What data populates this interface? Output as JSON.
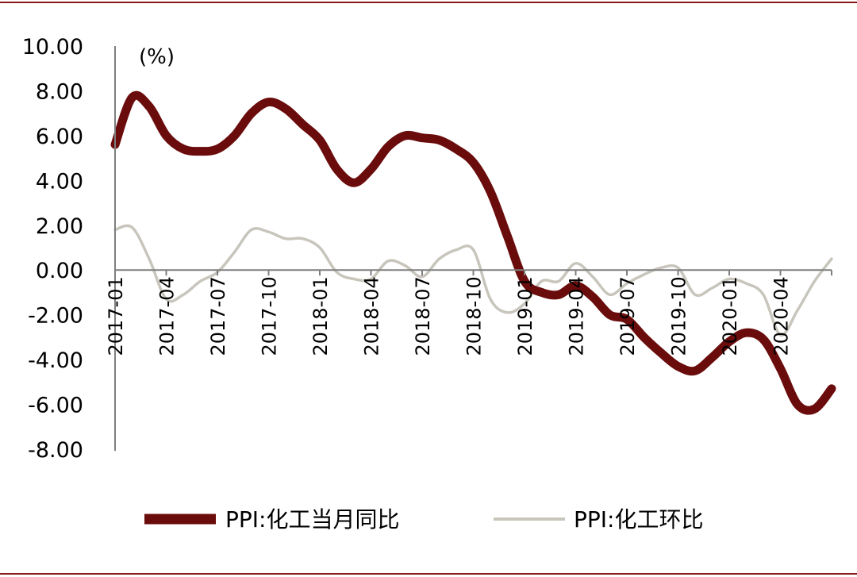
{
  "chart_data": {
    "type": "line",
    "unit_label": "(%)",
    "ylim": [
      -8,
      10
    ],
    "y_ticks": [
      "10.00",
      "8.00",
      "6.00",
      "4.00",
      "2.00",
      "0.00",
      "-2.00",
      "-4.00",
      "-6.00",
      "-8.00"
    ],
    "y_tick_values": [
      10,
      8,
      6,
      4,
      2,
      0,
      -2,
      -4,
      -6,
      -8
    ],
    "x_tick_labels": [
      "2017-01",
      "2017-04",
      "2017-07",
      "2017-10",
      "2018-01",
      "2018-04",
      "2018-07",
      "2018-10",
      "2019-01",
      "2019-04",
      "2019-07",
      "2019-10",
      "2020-01",
      "2020-04"
    ],
    "x_tick_month_index": [
      0,
      3,
      6,
      9,
      12,
      15,
      18,
      21,
      24,
      27,
      30,
      33,
      36,
      39
    ],
    "n_months": 43,
    "series": [
      {
        "name": "PPI:化工当月同比",
        "color": "#6b0c0c",
        "values": [
          5.6,
          7.7,
          7.3,
          6.0,
          5.4,
          5.3,
          5.4,
          6.0,
          7.0,
          7.5,
          7.2,
          6.5,
          5.8,
          4.5,
          3.9,
          4.5,
          5.5,
          6.0,
          5.9,
          5.8,
          5.4,
          4.8,
          3.5,
          1.5,
          -0.5,
          -1.0,
          -1.1,
          -0.7,
          -1.2,
          -2.0,
          -2.2,
          -3.0,
          -3.7,
          -4.3,
          -4.5,
          -3.9,
          -3.2,
          -2.8,
          -3.1,
          -4.4,
          -6.0,
          -6.2,
          -5.3
        ]
      },
      {
        "name": "PPI:化工环比",
        "color": "#c8c6bc",
        "values": [
          1.8,
          1.9,
          0.5,
          -1.3,
          -1.1,
          -0.5,
          -0.1,
          0.8,
          1.8,
          1.7,
          1.4,
          1.4,
          1.0,
          -0.1,
          -0.4,
          -0.4,
          0.4,
          0.2,
          -0.3,
          0.5,
          0.9,
          0.9,
          -1.3,
          -1.9,
          -1.5,
          -0.5,
          -0.5,
          0.3,
          -0.3,
          -1.1,
          -0.6,
          -0.2,
          0.1,
          0.1,
          -1.1,
          -0.8,
          -0.4,
          -0.6,
          -1.1,
          -2.9,
          -1.8,
          -0.5,
          0.5
        ]
      }
    ],
    "legend_position": "bottom-center",
    "grid": false
  }
}
